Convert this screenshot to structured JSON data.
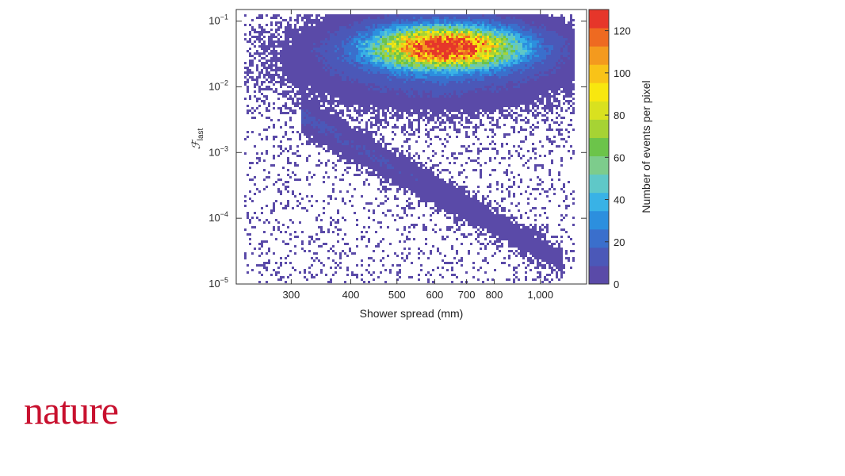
{
  "chart_data": {
    "type": "heatmap",
    "xlabel": "Shower spread (mm)",
    "ylabel_main": "ℱ",
    "ylabel_sub": "last",
    "x_scale": "log",
    "y_scale": "log",
    "xlim": [
      230,
      1250
    ],
    "ylim": [
      1e-05,
      0.15
    ],
    "x_ticks": [
      {
        "value": 300,
        "label": "300"
      },
      {
        "value": 400,
        "label": "400"
      },
      {
        "value": 500,
        "label": "500"
      },
      {
        "value": 600,
        "label": "600"
      },
      {
        "value": 700,
        "label": "700"
      },
      {
        "value": 800,
        "label": "800"
      },
      {
        "value": 1000,
        "label": "1,000"
      }
    ],
    "y_ticks": [
      {
        "value": 0.1,
        "base": "10",
        "exp": "−1"
      },
      {
        "value": 0.01,
        "base": "10",
        "exp": "−2"
      },
      {
        "value": 0.001,
        "base": "10",
        "exp": "−3"
      },
      {
        "value": 0.0001,
        "base": "10",
        "exp": "−4"
      },
      {
        "value": 1e-05,
        "base": "10",
        "exp": "−5"
      }
    ],
    "colorbar": {
      "label": "Number of events per pixel",
      "range": [
        0,
        130
      ],
      "ticks": [
        {
          "value": 0,
          "label": "0"
        },
        {
          "value": 20,
          "label": "20"
        },
        {
          "value": 40,
          "label": "40"
        },
        {
          "value": 60,
          "label": "60"
        },
        {
          "value": 80,
          "label": "80"
        },
        {
          "value": 100,
          "label": "100"
        },
        {
          "value": 120,
          "label": "120"
        }
      ],
      "colors": [
        "#5a4aa8",
        "#4b58b8",
        "#3a6fcc",
        "#2c8fde",
        "#39b2e6",
        "#5fc8c8",
        "#7dcc8c",
        "#6cc44a",
        "#a6d334",
        "#d9e11f",
        "#f8e70f",
        "#f9c318",
        "#f49a1e",
        "#ee6a21",
        "#e6362a"
      ]
    },
    "populations": [
      {
        "description": "dense cluster",
        "x_range": [
          300,
          1150
        ],
        "y_peak": 0.04,
        "peak_count": 125
      },
      {
        "description": "diagonal band",
        "x_range": [
          330,
          1100
        ],
        "y_range": [
          0.003,
          3e-05
        ],
        "peak_count": 8
      }
    ]
  },
  "brand": {
    "logo_text": "nature",
    "color": "#c8102e"
  }
}
